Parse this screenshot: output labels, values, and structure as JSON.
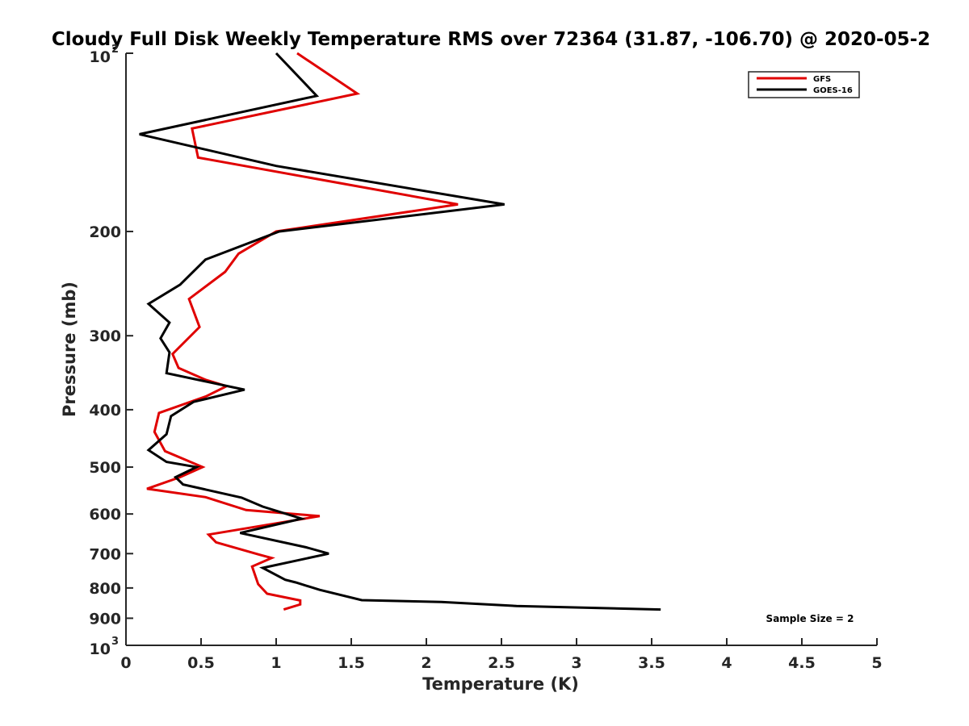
{
  "chart_data": {
    "type": "line",
    "title": "Cloudy Full Disk Weekly Temperature RMS over 72364 (31.87, -106.70) @ 2020-05-2",
    "xlabel": "Temperature (K)",
    "ylabel": "Pressure (mb)",
    "xlim": [
      0,
      5
    ],
    "ylim": [
      100,
      1000
    ],
    "y_scale": "log",
    "y_reversed": true,
    "x_ticks": [
      "0",
      "0.5",
      "1",
      "1.5",
      "2",
      "2.5",
      "3",
      "3.5",
      "4",
      "4.5",
      "5"
    ],
    "y_ticks": [
      {
        "value": 100,
        "base": "10",
        "exp": "2"
      },
      {
        "value": 200,
        "label": "200"
      },
      {
        "value": 300,
        "label": "300"
      },
      {
        "value": 400,
        "label": "400"
      },
      {
        "value": 500,
        "label": "500"
      },
      {
        "value": 600,
        "label": "600"
      },
      {
        "value": 700,
        "label": "700"
      },
      {
        "value": 800,
        "label": "800"
      },
      {
        "value": 900,
        "label": "900"
      },
      {
        "value": 1000,
        "base": "10",
        "exp": "3"
      }
    ],
    "grid": false,
    "legend_position": "top-right",
    "annotation": "Sample Size = 2",
    "series": [
      {
        "name": "GFS",
        "color": "#e00000",
        "points": [
          [
            1.14,
            100
          ],
          [
            1.54,
            117
          ],
          [
            0.44,
            134
          ],
          [
            0.48,
            150
          ],
          [
            2.21,
            180
          ],
          [
            1.0,
            200
          ],
          [
            0.75,
            218
          ],
          [
            0.66,
            234
          ],
          [
            0.42,
            260
          ],
          [
            0.49,
            290
          ],
          [
            0.31,
            322
          ],
          [
            0.35,
            340
          ],
          [
            0.53,
            356
          ],
          [
            0.67,
            365
          ],
          [
            0.53,
            380
          ],
          [
            0.22,
            405
          ],
          [
            0.19,
            436
          ],
          [
            0.26,
            470
          ],
          [
            0.51,
            500
          ],
          [
            0.36,
            520
          ],
          [
            0.14,
            544
          ],
          [
            0.53,
            562
          ],
          [
            0.8,
            591
          ],
          [
            1.29,
            605
          ],
          [
            0.55,
            650
          ],
          [
            0.6,
            670
          ],
          [
            0.89,
            703
          ],
          [
            0.97,
            712
          ],
          [
            0.84,
            736
          ],
          [
            0.88,
            788
          ],
          [
            0.94,
            818
          ],
          [
            1.16,
            840
          ],
          [
            1.16,
            853
          ],
          [
            1.05,
            870
          ]
        ]
      },
      {
        "name": "GOES-16",
        "color": "#000000",
        "points": [
          [
            1.0,
            100
          ],
          [
            1.27,
            118
          ],
          [
            0.09,
            137
          ],
          [
            1.0,
            155
          ],
          [
            2.52,
            180
          ],
          [
            1.02,
            200
          ],
          [
            0.53,
            223
          ],
          [
            0.36,
            246
          ],
          [
            0.15,
            265
          ],
          [
            0.29,
            285
          ],
          [
            0.23,
            303
          ],
          [
            0.29,
            320
          ],
          [
            0.27,
            347
          ],
          [
            0.79,
            370
          ],
          [
            0.45,
            388
          ],
          [
            0.3,
            410
          ],
          [
            0.27,
            440
          ],
          [
            0.15,
            468
          ],
          [
            0.27,
            490
          ],
          [
            0.47,
            500
          ],
          [
            0.33,
            520
          ],
          [
            0.38,
            535
          ],
          [
            0.77,
            563
          ],
          [
            0.91,
            583
          ],
          [
            1.17,
            611
          ],
          [
            0.76,
            646
          ],
          [
            1.2,
            683
          ],
          [
            1.35,
            700
          ],
          [
            0.91,
            740
          ],
          [
            1.06,
            775
          ],
          [
            1.13,
            783
          ],
          [
            1.29,
            806
          ],
          [
            1.57,
            839
          ],
          [
            2.1,
            845
          ],
          [
            2.6,
            858
          ],
          [
            3.56,
            870
          ]
        ]
      }
    ]
  }
}
